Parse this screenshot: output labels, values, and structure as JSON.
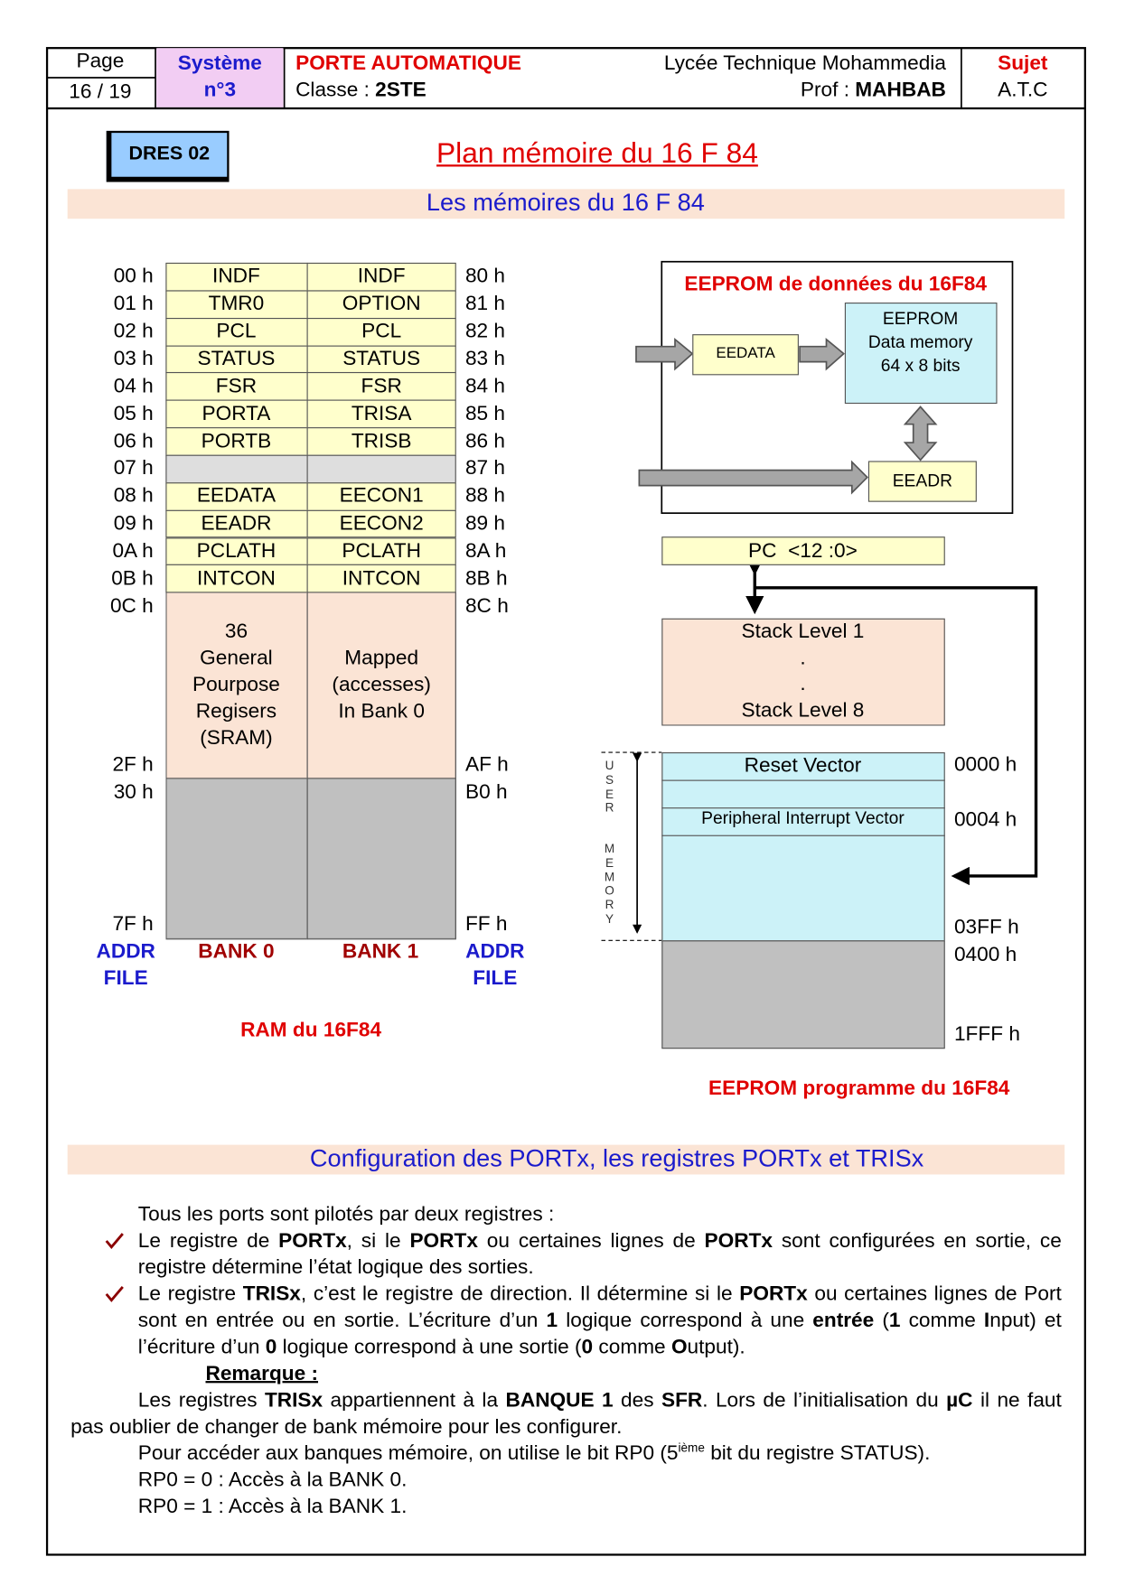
{
  "header": {
    "page_label": "Page",
    "page": "16 / 19",
    "system": "Système",
    "system_no": "n°3",
    "project": "PORTE AUTOMATIQUE",
    "class_label": "Classe :",
    "class": "2STE",
    "school": "Lycée Technique Mohammedia",
    "prof_label": "Prof :",
    "prof": "MAHBAB",
    "subject_label": "Sujet",
    "subject": "A.T.C"
  },
  "doc_id": "DRES 02",
  "title": "Plan mémoire du 16 F 84",
  "section1": "Les mémoires du 16 F 84",
  "ram": {
    "sfr_rows": [
      {
        "addr": "00 h",
        "bank0": "INDF",
        "bank1": "INDF",
        "addr1": "80 h"
      },
      {
        "addr": "01 h",
        "bank0": "TMR0",
        "bank1": "OPTION",
        "addr1": "81 h"
      },
      {
        "addr": "02 h",
        "bank0": "PCL",
        "bank1": "PCL",
        "addr1": "82 h"
      },
      {
        "addr": "03 h",
        "bank0": "STATUS",
        "bank1": "STATUS",
        "addr1": "83 h"
      },
      {
        "addr": "04 h",
        "bank0": "FSR",
        "bank1": "FSR",
        "addr1": "84 h"
      },
      {
        "addr": "05 h",
        "bank0": "PORTA",
        "bank1": "TRISA",
        "addr1": "85 h"
      },
      {
        "addr": "06 h",
        "bank0": "PORTB",
        "bank1": "TRISB",
        "addr1": "86 h"
      },
      {
        "addr": "07 h",
        "addr1": "87 h"
      },
      {
        "addr": "08 h",
        "bank0": "EEDATA",
        "bank1": "EECON1",
        "addr1": "88 h"
      },
      {
        "addr": "09 h",
        "bank0": "EEADR",
        "bank1": "EECON2",
        "addr1": "89 h"
      },
      {
        "addr": "0A h",
        "bank0": "PCLATH",
        "bank1": "PCLATH",
        "addr1": "8A h"
      },
      {
        "addr": "0B h",
        "bank0": "INTCON",
        "bank1": "INTCON",
        "addr1": "8B h"
      }
    ],
    "gpr": {
      "start": "0C h",
      "start1": "8C h",
      "end": "2F h",
      "end1": "AF h",
      "bank0_text": [
        "36",
        "General",
        "Pourpose",
        "Regisers",
        "(SRAM)"
      ],
      "bank1_text": [
        "Mapped",
        "(accesses)",
        "In Bank 0"
      ]
    },
    "unimplemented": {
      "start": "30 h",
      "start1": "B0 h",
      "end": "7F h",
      "end1": "FF h"
    },
    "addr_file": [
      "ADDR",
      "FILE"
    ],
    "bank0_label": "BANK 0",
    "bank1_label": "BANK 1",
    "caption": "RAM du 16F84"
  },
  "eeprom_data": {
    "title": "EEPROM de données du 16F84",
    "memory": [
      "EEPROM",
      "Data memory",
      "64 x 8 bits"
    ],
    "eedata": "EEDATA",
    "eeadr": "EEADR"
  },
  "pc": "PC  <12 :0>",
  "stack": [
    "Stack Level 1",
    ".",
    ".",
    "Stack Level 8"
  ],
  "program": {
    "reset": "Reset Vector",
    "interrupt": "Peripheral Interrupt Vector",
    "addresses": [
      "0000 h",
      "0004 h",
      "03FF h",
      "0400 h",
      "1FFF h"
    ],
    "user_memory": [
      "USER",
      "MEMORY"
    ],
    "caption": "EEPROM programme du 16F84"
  },
  "section2": "Configuration des PORTx, les registres PORTx et TRISx",
  "body": {
    "intro": "Tous les ports sont pilotés par deux registres :",
    "bullets": [
      [
        "Le registre de ",
        {
          "bold": "PORTx"
        },
        ", si le ",
        {
          "bold": "PORTx"
        },
        " ou certaines lignes de ",
        {
          "bold": "PORTx"
        },
        " sont configurées en sortie, ce registre détermine l’état logique des sorties."
      ],
      [
        "Le registre ",
        {
          "bold": "TRISx"
        },
        ", c’est le registre de direction. Il détermine si le ",
        {
          "bold": "PORTx"
        },
        " ou certaines lignes de Port sont en entrée ou en sortie. L’écriture d’un ",
        {
          "bold": "1"
        },
        " logique correspond à une ",
        {
          "bold": "entrée"
        },
        " (",
        {
          "bold": "1"
        },
        " comme ",
        {
          "bold": "I"
        },
        "nput) et l’écriture d’un ",
        {
          "bold": "0"
        },
        " logique correspond à une sortie (",
        {
          "bold": "0"
        },
        " comme ",
        {
          "bold": "O"
        },
        "utput)."
      ]
    ],
    "remark_title": "Remarque :",
    "remark": [
      "Les registres ",
      {
        "bold": "TRISx"
      },
      " appartiennent à la ",
      {
        "bold": "BANQUE 1"
      },
      " des ",
      {
        "bold": "SFR"
      },
      ". Lors de l’initialisation du ",
      {
        "bold": "µC"
      },
      " il ne faut pas oublier de changer de bank mémoire pour les configurer."
    ],
    "rp0": [
      "Pour accéder aux banques mémoire, on utilise le bit RP0 (5",
      {
        "sup": "ième"
      },
      "  bit du registre STATUS)."
    ],
    "rp0_lines": [
      "RP0 = 0 : Accès à la BANK 0.",
      "RP0 = 1 : Accès à la BANK 1."
    ]
  }
}
